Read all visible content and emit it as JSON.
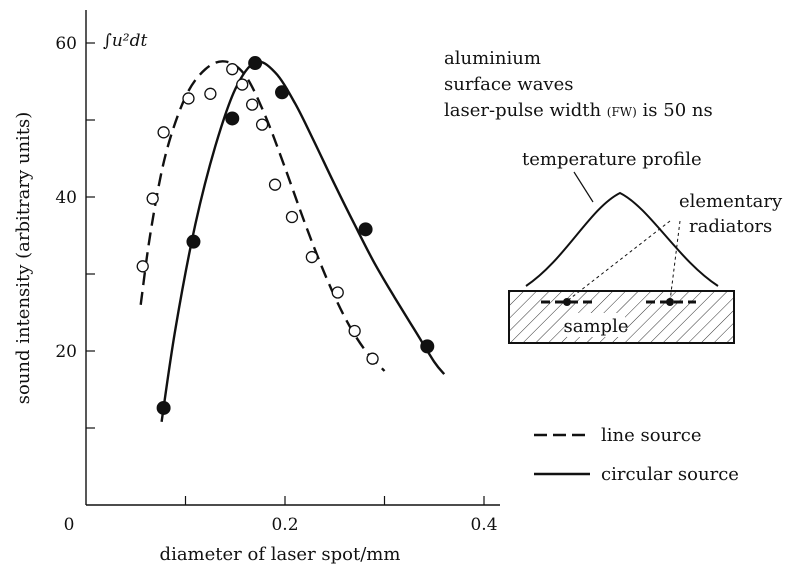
{
  "chart_data": {
    "type": "scatter",
    "xlabel": "diameter of laser spot/mm",
    "ylabel": "sound intensity (arbitrary units)",
    "xlim": [
      0,
      0.42
    ],
    "ylim": [
      0,
      65
    ],
    "x_ticks": [
      {
        "value": 0,
        "label": "0"
      },
      {
        "value": 0.2,
        "label": "0.2"
      },
      {
        "value": 0.4,
        "label": "0.4"
      }
    ],
    "x_minor_ticks": [
      0.1,
      0.3
    ],
    "y_ticks": [
      {
        "value": 20,
        "label": "20"
      },
      {
        "value": 40,
        "label": "40"
      },
      {
        "value": 60,
        "label": "60"
      }
    ],
    "y_minor_ticks": [
      10,
      30,
      50
    ],
    "y_unit_label": "∫u²dt",
    "grid": false,
    "series": [
      {
        "name": "line source",
        "marker": "open-circle",
        "line": "dashed",
        "points": [
          [
            0.057,
            31.0
          ],
          [
            0.067,
            39.8
          ],
          [
            0.078,
            48.4
          ],
          [
            0.103,
            52.8
          ],
          [
            0.125,
            53.4
          ],
          [
            0.147,
            56.6
          ],
          [
            0.157,
            54.6
          ],
          [
            0.167,
            52.0
          ],
          [
            0.177,
            49.4
          ],
          [
            0.19,
            41.6
          ],
          [
            0.207,
            37.4
          ],
          [
            0.227,
            32.2
          ],
          [
            0.253,
            27.6
          ],
          [
            0.27,
            22.6
          ],
          [
            0.288,
            19.0
          ]
        ],
        "curve": [
          [
            0.055,
            26.0
          ],
          [
            0.065,
            35.5
          ],
          [
            0.08,
            45.5
          ],
          [
            0.1,
            53.0
          ],
          [
            0.12,
            56.6
          ],
          [
            0.14,
            57.6
          ],
          [
            0.16,
            55.8
          ],
          [
            0.18,
            50.6
          ],
          [
            0.2,
            43.8
          ],
          [
            0.22,
            36.6
          ],
          [
            0.24,
            30.0
          ],
          [
            0.26,
            24.4
          ],
          [
            0.28,
            20.2
          ],
          [
            0.3,
            17.4
          ]
        ]
      },
      {
        "name": "circular source",
        "marker": "filled-circle",
        "line": "solid",
        "points": [
          [
            0.078,
            12.6
          ],
          [
            0.108,
            34.2
          ],
          [
            0.147,
            50.2
          ],
          [
            0.17,
            57.4
          ],
          [
            0.197,
            53.6
          ],
          [
            0.281,
            35.8
          ],
          [
            0.343,
            20.6
          ]
        ],
        "curve": [
          [
            0.076,
            10.8
          ],
          [
            0.09,
            23.0
          ],
          [
            0.11,
            36.5
          ],
          [
            0.13,
            46.6
          ],
          [
            0.15,
            54.0
          ],
          [
            0.17,
            57.5
          ],
          [
            0.19,
            56.2
          ],
          [
            0.21,
            52.2
          ],
          [
            0.23,
            47.0
          ],
          [
            0.25,
            41.6
          ],
          [
            0.27,
            36.4
          ],
          [
            0.29,
            31.4
          ],
          [
            0.31,
            27.0
          ],
          [
            0.33,
            22.8
          ],
          [
            0.35,
            18.6
          ],
          [
            0.36,
            17.0
          ]
        ]
      }
    ],
    "annotations": {
      "material": "aluminium",
      "wave_type": "surface waves",
      "pulse_prefix": "laser-pulse width ",
      "pulse_fw": "(FW)",
      "pulse_suffix": " is 50 ns"
    },
    "inset": {
      "temperature_profile": "temperature profile",
      "elementary": "elementary",
      "radiators": "radiators",
      "sample": "sample"
    },
    "legend": {
      "position": "bottom-right",
      "items": [
        {
          "label": "line source",
          "style": "dashed"
        },
        {
          "label": "circular source",
          "style": "solid"
        }
      ]
    }
  }
}
